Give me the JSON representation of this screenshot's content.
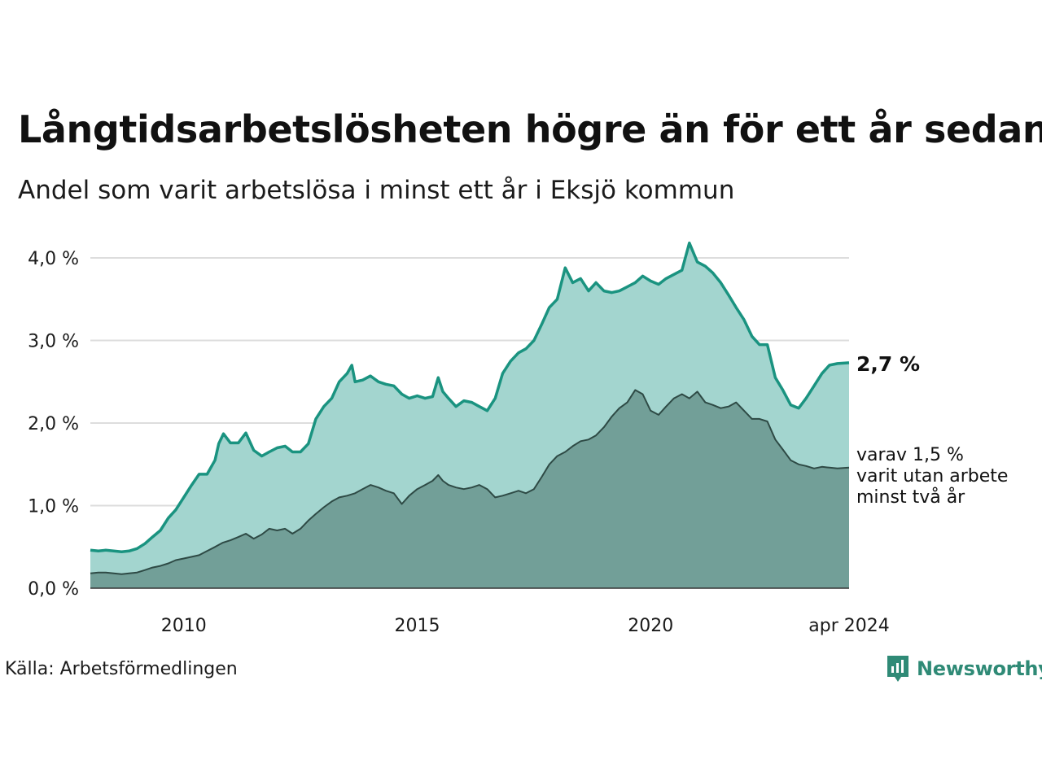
{
  "title": "Långtidsarbetslösheten högre än för ett år sedan",
  "subtitle": "Andel som varit arbetslösa i minst ett år i Eksjö kommun",
  "source": "Källa: Arbetsförmedlingen",
  "brand": "Newsworthy",
  "colors": {
    "outer_fill": "#a3d5cf",
    "outer_line": "#1a9380",
    "inner_fill": "#729f98",
    "inner_line": "#2e4a45",
    "grid": "#dddddd",
    "brand": "#2f8a76"
  },
  "chart_data": {
    "type": "area",
    "title": "Långtidsarbetslösheten högre än för ett år sedan",
    "subtitle": "Andel som varit arbetslösa i minst ett år i Eksjö kommun",
    "x_unit": "year (decimal)",
    "xlim": [
      2008.0,
      2024.25
    ],
    "ylim": [
      0,
      4.0
    ],
    "y_ticks": [
      {
        "value": 0,
        "label": "0,0 %"
      },
      {
        "value": 1,
        "label": "1,0 %"
      },
      {
        "value": 2,
        "label": "2,0 %"
      },
      {
        "value": 3,
        "label": "3,0 %"
      },
      {
        "value": 4,
        "label": "4,0 %"
      }
    ],
    "x_ticks": [
      {
        "value": 2010,
        "label": "2010"
      },
      {
        "value": 2015,
        "label": "2015"
      },
      {
        "value": 2020,
        "label": "2020"
      },
      {
        "value": 2024.25,
        "label": "apr 2024"
      }
    ],
    "grid": true,
    "series": [
      {
        "name": "Minst ett år",
        "end_label": "2,7 %",
        "points": [
          [
            2008.0,
            0.46
          ],
          [
            2008.17,
            0.45
          ],
          [
            2008.33,
            0.46
          ],
          [
            2008.5,
            0.45
          ],
          [
            2008.67,
            0.44
          ],
          [
            2008.83,
            0.45
          ],
          [
            2009.0,
            0.48
          ],
          [
            2009.17,
            0.54
          ],
          [
            2009.33,
            0.62
          ],
          [
            2009.5,
            0.7
          ],
          [
            2009.67,
            0.85
          ],
          [
            2009.83,
            0.95
          ],
          [
            2010.0,
            1.1
          ],
          [
            2010.17,
            1.25
          ],
          [
            2010.33,
            1.38
          ],
          [
            2010.5,
            1.38
          ],
          [
            2010.67,
            1.55
          ],
          [
            2010.75,
            1.75
          ],
          [
            2010.85,
            1.87
          ],
          [
            2011.0,
            1.76
          ],
          [
            2011.17,
            1.76
          ],
          [
            2011.33,
            1.88
          ],
          [
            2011.5,
            1.67
          ],
          [
            2011.67,
            1.6
          ],
          [
            2011.83,
            1.65
          ],
          [
            2012.0,
            1.7
          ],
          [
            2012.17,
            1.72
          ],
          [
            2012.33,
            1.65
          ],
          [
            2012.5,
            1.65
          ],
          [
            2012.67,
            1.75
          ],
          [
            2012.83,
            2.05
          ],
          [
            2013.0,
            2.2
          ],
          [
            2013.17,
            2.3
          ],
          [
            2013.33,
            2.5
          ],
          [
            2013.5,
            2.6
          ],
          [
            2013.6,
            2.7
          ],
          [
            2013.67,
            2.5
          ],
          [
            2013.83,
            2.52
          ],
          [
            2014.0,
            2.57
          ],
          [
            2014.17,
            2.5
          ],
          [
            2014.33,
            2.47
          ],
          [
            2014.5,
            2.45
          ],
          [
            2014.67,
            2.35
          ],
          [
            2014.83,
            2.3
          ],
          [
            2015.0,
            2.33
          ],
          [
            2015.17,
            2.3
          ],
          [
            2015.33,
            2.32
          ],
          [
            2015.45,
            2.55
          ],
          [
            2015.55,
            2.38
          ],
          [
            2015.67,
            2.3
          ],
          [
            2015.83,
            2.2
          ],
          [
            2016.0,
            2.27
          ],
          [
            2016.17,
            2.25
          ],
          [
            2016.33,
            2.2
          ],
          [
            2016.5,
            2.15
          ],
          [
            2016.67,
            2.3
          ],
          [
            2016.83,
            2.6
          ],
          [
            2017.0,
            2.75
          ],
          [
            2017.17,
            2.85
          ],
          [
            2017.33,
            2.9
          ],
          [
            2017.5,
            3.0
          ],
          [
            2017.67,
            3.2
          ],
          [
            2017.83,
            3.4
          ],
          [
            2018.0,
            3.5
          ],
          [
            2018.17,
            3.88
          ],
          [
            2018.33,
            3.7
          ],
          [
            2018.5,
            3.75
          ],
          [
            2018.67,
            3.6
          ],
          [
            2018.83,
            3.7
          ],
          [
            2019.0,
            3.6
          ],
          [
            2019.17,
            3.58
          ],
          [
            2019.33,
            3.6
          ],
          [
            2019.5,
            3.65
          ],
          [
            2019.67,
            3.7
          ],
          [
            2019.83,
            3.78
          ],
          [
            2020.0,
            3.72
          ],
          [
            2020.17,
            3.68
          ],
          [
            2020.33,
            3.75
          ],
          [
            2020.5,
            3.8
          ],
          [
            2020.67,
            3.85
          ],
          [
            2020.83,
            4.18
          ],
          [
            2021.0,
            3.95
          ],
          [
            2021.17,
            3.9
          ],
          [
            2021.33,
            3.82
          ],
          [
            2021.5,
            3.7
          ],
          [
            2021.67,
            3.55
          ],
          [
            2021.83,
            3.4
          ],
          [
            2022.0,
            3.25
          ],
          [
            2022.17,
            3.05
          ],
          [
            2022.33,
            2.95
          ],
          [
            2022.5,
            2.95
          ],
          [
            2022.67,
            2.55
          ],
          [
            2022.83,
            2.4
          ],
          [
            2023.0,
            2.22
          ],
          [
            2023.17,
            2.18
          ],
          [
            2023.33,
            2.3
          ],
          [
            2023.5,
            2.45
          ],
          [
            2023.67,
            2.6
          ],
          [
            2023.83,
            2.7
          ],
          [
            2024.0,
            2.72
          ],
          [
            2024.25,
            2.73
          ]
        ]
      },
      {
        "name": "varav minst två år",
        "end_label_lines": [
          "varav 1,5 %",
          "varit utan arbete",
          "minst två år"
        ],
        "points": [
          [
            2008.0,
            0.18
          ],
          [
            2008.17,
            0.19
          ],
          [
            2008.33,
            0.19
          ],
          [
            2008.5,
            0.18
          ],
          [
            2008.67,
            0.17
          ],
          [
            2008.83,
            0.18
          ],
          [
            2009.0,
            0.19
          ],
          [
            2009.17,
            0.22
          ],
          [
            2009.33,
            0.25
          ],
          [
            2009.5,
            0.27
          ],
          [
            2009.67,
            0.3
          ],
          [
            2009.83,
            0.34
          ],
          [
            2010.0,
            0.36
          ],
          [
            2010.17,
            0.38
          ],
          [
            2010.33,
            0.4
          ],
          [
            2010.5,
            0.45
          ],
          [
            2010.67,
            0.5
          ],
          [
            2010.83,
            0.55
          ],
          [
            2011.0,
            0.58
          ],
          [
            2011.17,
            0.62
          ],
          [
            2011.33,
            0.66
          ],
          [
            2011.5,
            0.6
          ],
          [
            2011.67,
            0.65
          ],
          [
            2011.83,
            0.72
          ],
          [
            2012.0,
            0.7
          ],
          [
            2012.17,
            0.72
          ],
          [
            2012.33,
            0.66
          ],
          [
            2012.5,
            0.72
          ],
          [
            2012.67,
            0.82
          ],
          [
            2012.83,
            0.9
          ],
          [
            2013.0,
            0.98
          ],
          [
            2013.17,
            1.05
          ],
          [
            2013.33,
            1.1
          ],
          [
            2013.5,
            1.12
          ],
          [
            2013.67,
            1.15
          ],
          [
            2013.83,
            1.2
          ],
          [
            2014.0,
            1.25
          ],
          [
            2014.17,
            1.22
          ],
          [
            2014.33,
            1.18
          ],
          [
            2014.5,
            1.15
          ],
          [
            2014.67,
            1.02
          ],
          [
            2014.83,
            1.12
          ],
          [
            2015.0,
            1.2
          ],
          [
            2015.17,
            1.25
          ],
          [
            2015.33,
            1.3
          ],
          [
            2015.45,
            1.37
          ],
          [
            2015.55,
            1.3
          ],
          [
            2015.67,
            1.25
          ],
          [
            2015.83,
            1.22
          ],
          [
            2016.0,
            1.2
          ],
          [
            2016.17,
            1.22
          ],
          [
            2016.33,
            1.25
          ],
          [
            2016.5,
            1.2
          ],
          [
            2016.67,
            1.1
          ],
          [
            2016.83,
            1.12
          ],
          [
            2017.0,
            1.15
          ],
          [
            2017.17,
            1.18
          ],
          [
            2017.33,
            1.15
          ],
          [
            2017.5,
            1.2
          ],
          [
            2017.67,
            1.35
          ],
          [
            2017.83,
            1.5
          ],
          [
            2018.0,
            1.6
          ],
          [
            2018.17,
            1.65
          ],
          [
            2018.33,
            1.72
          ],
          [
            2018.5,
            1.78
          ],
          [
            2018.67,
            1.8
          ],
          [
            2018.83,
            1.85
          ],
          [
            2019.0,
            1.95
          ],
          [
            2019.17,
            2.08
          ],
          [
            2019.33,
            2.18
          ],
          [
            2019.5,
            2.25
          ],
          [
            2019.67,
            2.4
          ],
          [
            2019.83,
            2.35
          ],
          [
            2020.0,
            2.15
          ],
          [
            2020.17,
            2.1
          ],
          [
            2020.33,
            2.2
          ],
          [
            2020.5,
            2.3
          ],
          [
            2020.67,
            2.35
          ],
          [
            2020.83,
            2.3
          ],
          [
            2021.0,
            2.38
          ],
          [
            2021.17,
            2.25
          ],
          [
            2021.33,
            2.22
          ],
          [
            2021.5,
            2.18
          ],
          [
            2021.67,
            2.2
          ],
          [
            2021.83,
            2.25
          ],
          [
            2022.0,
            2.15
          ],
          [
            2022.17,
            2.05
          ],
          [
            2022.33,
            2.05
          ],
          [
            2022.5,
            2.02
          ],
          [
            2022.67,
            1.8
          ],
          [
            2022.83,
            1.68
          ],
          [
            2023.0,
            1.55
          ],
          [
            2023.17,
            1.5
          ],
          [
            2023.33,
            1.48
          ],
          [
            2023.5,
            1.45
          ],
          [
            2023.67,
            1.47
          ],
          [
            2023.83,
            1.46
          ],
          [
            2024.0,
            1.45
          ],
          [
            2024.25,
            1.46
          ]
        ]
      }
    ]
  }
}
